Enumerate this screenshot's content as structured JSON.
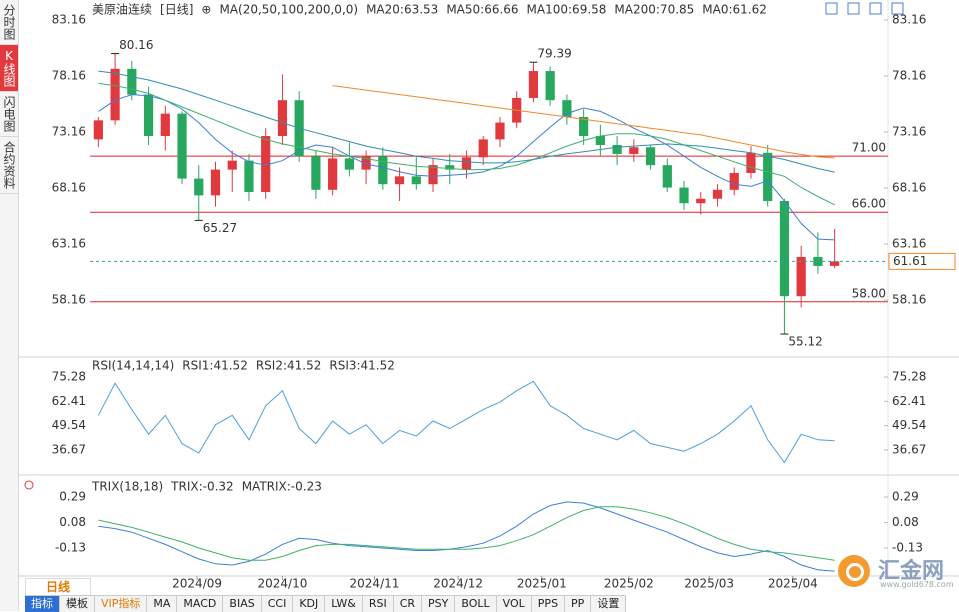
{
  "ui": {
    "sidebar_tabs": [
      "分时图",
      "K线图",
      "闪电图",
      "合约资料"
    ],
    "active_tab": 1,
    "period_tab": "日线",
    "toolbar": [
      "指标",
      "模板",
      "VIP指标",
      "MA",
      "MACD",
      "BIAS",
      "CCI",
      "KDJ",
      "LW&",
      "RSI",
      "CR",
      "PSY",
      "BOLL",
      "VOL",
      "PPS",
      "PP",
      "设置"
    ],
    "watermark": {
      "name": "汇金网",
      "url": "www.gold678.com"
    }
  },
  "chart_data": [
    {
      "type": "candlestick",
      "title": "美原油连续",
      "period": "[日线]",
      "crosshair": "⊕",
      "ma_spec": "MA(20,50,100,200,0,0)",
      "up_color": "#e0393e",
      "down_color": "#27a85e",
      "xlim": [
        0,
        45
      ],
      "ylim": [
        53.25,
        84.23
      ],
      "yticks": [
        58.16,
        63.16,
        68.16,
        73.16,
        78.16,
        83.16
      ],
      "open": [
        72.5,
        74.2,
        78.8,
        76.5,
        72.8,
        74.8,
        69.0,
        67.5,
        69.8,
        70.6,
        67.8,
        72.8,
        76.0,
        71.0,
        68.0,
        70.8,
        69.8,
        71.0,
        68.5,
        69.2,
        68.5,
        70.2,
        69.8,
        70.9,
        72.5,
        74.0,
        76.2,
        78.6,
        76.0,
        74.5,
        72.8,
        72.0,
        71.2,
        71.8,
        70.2,
        68.2,
        66.8,
        67.2,
        68.0,
        69.5,
        71.3,
        67.0,
        58.5,
        62.0,
        61.2
      ],
      "high": [
        74.5,
        80.16,
        79.5,
        77.2,
        75.5,
        75.0,
        70.2,
        70.5,
        71.5,
        71.2,
        73.5,
        78.3,
        76.8,
        71.5,
        71.8,
        72.2,
        71.5,
        71.8,
        70.0,
        71.0,
        70.8,
        71.2,
        71.5,
        72.8,
        74.5,
        76.8,
        79.39,
        79.0,
        76.5,
        75.2,
        73.8,
        72.8,
        72.5,
        72.0,
        70.8,
        68.8,
        67.8,
        68.5,
        70.0,
        71.9,
        72.0,
        67.2,
        63.0,
        64.2,
        64.5
      ],
      "low": [
        71.8,
        73.8,
        76.0,
        72.0,
        71.5,
        68.5,
        65.27,
        66.5,
        67.8,
        67.0,
        67.2,
        72.0,
        70.5,
        67.2,
        67.5,
        69.2,
        68.5,
        68.0,
        67.0,
        68.0,
        67.8,
        68.5,
        69.0,
        70.2,
        71.8,
        73.5,
        75.8,
        75.5,
        73.8,
        72.0,
        71.0,
        70.2,
        70.5,
        69.8,
        67.8,
        66.2,
        65.8,
        66.5,
        67.5,
        69.0,
        66.5,
        55.12,
        57.5,
        60.5,
        61.0
      ],
      "close": [
        74.2,
        78.8,
        76.5,
        72.8,
        74.8,
        69.0,
        67.5,
        69.8,
        70.6,
        67.8,
        72.8,
        76.0,
        71.0,
        68.0,
        70.8,
        69.8,
        71.0,
        68.5,
        69.2,
        68.5,
        70.2,
        69.8,
        70.9,
        72.5,
        74.0,
        76.2,
        78.6,
        76.0,
        74.5,
        72.8,
        72.0,
        71.2,
        71.8,
        70.2,
        68.2,
        66.8,
        67.2,
        68.0,
        69.5,
        71.3,
        67.0,
        58.5,
        62.0,
        61.2,
        61.61
      ],
      "series": [
        {
          "name": "MA20:63.53",
          "color": "#3b7fd6",
          "values": [
            75,
            76,
            76.5,
            76.4,
            76,
            75.2,
            74,
            72.5,
            71.3,
            70.5,
            70.2,
            70.6,
            71.5,
            72,
            71.8,
            71,
            70.3,
            70,
            69.6,
            69.3,
            69.2,
            69.3,
            69.4,
            69.6,
            70.1,
            71,
            72.3,
            73.6,
            74.8,
            75.3,
            75,
            74.3,
            73.5,
            72.8,
            72,
            71,
            70,
            69.2,
            68.5,
            68.3,
            68.8,
            67,
            65,
            63.6,
            63.53
          ]
        },
        {
          "name": "MA50:66.66",
          "color": "#3fb16b",
          "values": [
            77.5,
            77.3,
            77,
            76.6,
            76,
            75.4,
            74.8,
            74.2,
            73.6,
            73,
            72.5,
            72.1,
            71.8,
            71.5,
            71.2,
            71,
            70.8,
            70.5,
            70.3,
            70.1,
            70,
            69.9,
            69.8,
            69.8,
            69.9,
            70.2,
            70.7,
            71.3,
            71.9,
            72.4,
            72.8,
            73,
            73,
            72.8,
            72.5,
            72,
            71.5,
            71,
            70.5,
            70,
            69.6,
            69.2,
            68.2,
            67.4,
            66.66
          ]
        },
        {
          "name": "MA100:69.58",
          "color": "#2f8fb0",
          "values": [
            78.6,
            78.4,
            78.1,
            77.8,
            77.4,
            77,
            76.5,
            76,
            75.5,
            75,
            74.5,
            74,
            73.5,
            73.1,
            72.7,
            72.3,
            71.9,
            71.6,
            71.3,
            71,
            70.8,
            70.6,
            70.5,
            70.4,
            70.4,
            70.5,
            70.7,
            71,
            71.2,
            71.4,
            71.6,
            71.8,
            71.9,
            72,
            72.1,
            72,
            71.9,
            71.7,
            71.5,
            71.3,
            71,
            70.7,
            70.3,
            69.9,
            69.58
          ]
        },
        {
          "name": "MA200:70.85",
          "color": "#f0892b",
          "values": [
            null,
            null,
            null,
            null,
            null,
            null,
            null,
            null,
            null,
            null,
            null,
            null,
            null,
            null,
            77.3,
            77.1,
            76.9,
            76.7,
            76.5,
            76.3,
            76.1,
            75.9,
            75.7,
            75.5,
            75.3,
            75.1,
            74.9,
            74.7,
            74.5,
            74.3,
            74.1,
            73.9,
            73.7,
            73.5,
            73.3,
            73.1,
            72.9,
            72.6,
            72.3,
            72.0,
            71.7,
            71.4,
            71.15,
            70.95,
            70.85
          ]
        },
        {
          "name": "MA0:61.62",
          "color": "#e77fd0",
          "values": []
        }
      ],
      "levels": [
        {
          "value": 71,
          "label": "71.00",
          "color": "#e0202a"
        },
        {
          "value": 66,
          "label": "66.00",
          "color": "#e0202a"
        },
        {
          "value": 58,
          "label": "58.00",
          "color": "#e0202a"
        }
      ],
      "current": {
        "value": 61.61,
        "color": "#2f9fb0",
        "box_color": "#f08a24"
      },
      "annotations": [
        {
          "x": 1.5,
          "value": 80.16,
          "color": "#d63d3d"
        },
        {
          "x": 6.5,
          "value": 65.27,
          "color": "#3aa566"
        },
        {
          "x": 26.5,
          "value": 79.39,
          "color": "#d63d3d"
        },
        {
          "x": 41.5,
          "value": 55.12,
          "color": "#3aa566"
        }
      ]
    },
    {
      "type": "line",
      "title": "RSI(14,14,14)",
      "xlim": [
        0,
        45
      ],
      "ylim": [
        26.02,
        77.93
      ],
      "yticks": [
        36.67,
        49.54,
        62.41,
        75.28
      ],
      "series": [
        {
          "name": "RSI1:41.52",
          "color": "#4a9ee0",
          "values": [
            55,
            72,
            58,
            45,
            55,
            40,
            35,
            50,
            55,
            42,
            60,
            68,
            48,
            40,
            52,
            45,
            50,
            40,
            47,
            44,
            52,
            48,
            53,
            58,
            62,
            68,
            73,
            60,
            55,
            48,
            45,
            42,
            47,
            40,
            38,
            36,
            40,
            45,
            52,
            60,
            42,
            30,
            45,
            42,
            41.52
          ]
        },
        {
          "name": "RSI2:41.52",
          "color": "#3bbd6b",
          "values": []
        },
        {
          "name": "RSI3:41.52",
          "color": "#3a9fd6",
          "values": []
        }
      ]
    },
    {
      "type": "line",
      "title": "TRIX(18,18)",
      "xlim": [
        0,
        45
      ],
      "ylim": [
        -0.352,
        0.364
      ],
      "yticks": [
        -0.13,
        0.08,
        0.29
      ],
      "xticks": [
        {
          "value": 6.4,
          "label": "2024/09"
        },
        {
          "value": 11.5,
          "label": "2024/10"
        },
        {
          "value": 17,
          "label": "2024/11"
        },
        {
          "value": 22,
          "label": "2024/12"
        },
        {
          "value": 27,
          "label": "2025/01"
        },
        {
          "value": 32.2,
          "label": "2025/02"
        },
        {
          "value": 37,
          "label": "2025/03"
        },
        {
          "value": 42,
          "label": "2025/04"
        }
      ],
      "series": [
        {
          "name": "TRIX:-0.32",
          "color": "#3b7fd6",
          "values": [
            0.05,
            0.03,
            0.0,
            -0.05,
            -0.1,
            -0.16,
            -0.22,
            -0.26,
            -0.27,
            -0.24,
            -0.18,
            -0.1,
            -0.05,
            -0.06,
            -0.09,
            -0.11,
            -0.12,
            -0.13,
            -0.14,
            -0.15,
            -0.15,
            -0.14,
            -0.12,
            -0.09,
            -0.03,
            0.05,
            0.15,
            0.22,
            0.25,
            0.24,
            0.2,
            0.15,
            0.1,
            0.05,
            0.0,
            -0.06,
            -0.12,
            -0.17,
            -0.2,
            -0.18,
            -0.15,
            -0.2,
            -0.27,
            -0.31,
            -0.32
          ]
        },
        {
          "name": "MATRIX:-0.23",
          "color": "#3fb16b",
          "values": [
            0.1,
            0.07,
            0.04,
            0.0,
            -0.04,
            -0.08,
            -0.13,
            -0.17,
            -0.21,
            -0.23,
            -0.23,
            -0.2,
            -0.15,
            -0.11,
            -0.1,
            -0.1,
            -0.11,
            -0.12,
            -0.13,
            -0.14,
            -0.14,
            -0.14,
            -0.14,
            -0.13,
            -0.11,
            -0.07,
            -0.02,
            0.05,
            0.12,
            0.18,
            0.21,
            0.21,
            0.19,
            0.16,
            0.12,
            0.07,
            0.01,
            -0.05,
            -0.1,
            -0.14,
            -0.16,
            -0.17,
            -0.19,
            -0.21,
            -0.23
          ]
        }
      ]
    }
  ]
}
